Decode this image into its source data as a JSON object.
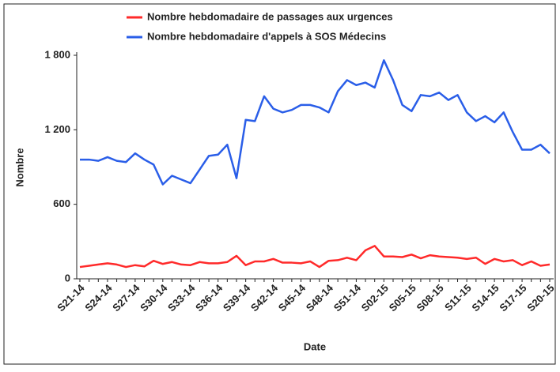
{
  "chart_data": {
    "type": "line",
    "x_label": "Date",
    "y_label": "Nombre",
    "categories": [
      "S21-14",
      null,
      null,
      "S24-14",
      null,
      null,
      "S27-14",
      null,
      null,
      "S30-14",
      null,
      null,
      "S33-14",
      null,
      null,
      "S36-14",
      null,
      null,
      "S39-14",
      null,
      null,
      "S42-14",
      null,
      null,
      "S45-14",
      null,
      null,
      "S48-14",
      null,
      null,
      "S51-14",
      null,
      null,
      "S02-15",
      null,
      null,
      "S05-15",
      null,
      null,
      "S08-15",
      null,
      null,
      "S11-15",
      null,
      null,
      "S14-15",
      null,
      null,
      "S17-15",
      null,
      null,
      "S20-15"
    ],
    "series": [
      {
        "name": "Nombre hebdomadaire de passages aux urgences",
        "color": "#ff2a2a",
        "values": [
          95,
          105,
          115,
          125,
          115,
          95,
          110,
          100,
          145,
          120,
          135,
          115,
          110,
          135,
          125,
          125,
          135,
          185,
          110,
          140,
          140,
          160,
          130,
          130,
          125,
          140,
          95,
          145,
          150,
          170,
          150,
          230,
          265,
          180,
          180,
          175,
          195,
          165,
          190,
          180,
          175,
          170,
          160,
          170,
          120,
          160,
          140,
          150,
          110,
          140,
          105,
          115
        ]
      },
      {
        "name": "Nombre hebdomadaire d'appels à SOS Médecins",
        "color": "#2a5ee8",
        "values": [
          960,
          960,
          950,
          980,
          950,
          940,
          1010,
          960,
          920,
          760,
          830,
          800,
          770,
          880,
          990,
          1000,
          1080,
          810,
          1280,
          1270,
          1470,
          1370,
          1340,
          1360,
          1400,
          1400,
          1380,
          1340,
          1510,
          1600,
          1560,
          1580,
          1540,
          1760,
          1600,
          1400,
          1350,
          1480,
          1470,
          1500,
          1440,
          1480,
          1340,
          1270,
          1310,
          1260,
          1340,
          1180,
          1040,
          1040,
          1080,
          1010
        ]
      }
    ],
    "ylim": [
      0,
      1800
    ],
    "yticks": [
      0,
      600,
      {
        "value": 1200,
        "label": "1 200"
      },
      {
        "value": 1800,
        "label": "1 800"
      }
    ],
    "grid": false,
    "legend": "top"
  }
}
